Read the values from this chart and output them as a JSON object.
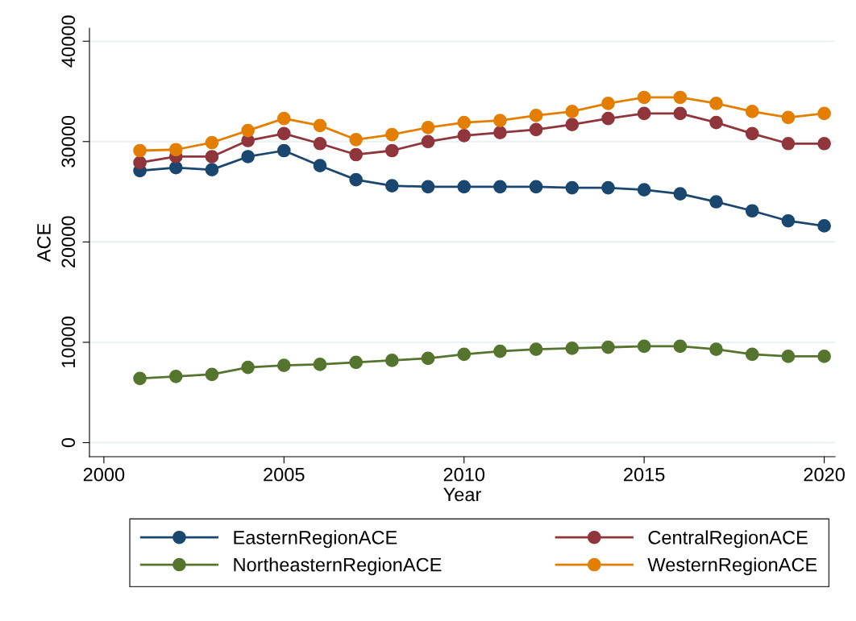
{
  "chart_data": {
    "type": "line",
    "xlabel": "Year",
    "ylabel": "ACE",
    "x": [
      2001,
      2002,
      2003,
      2004,
      2005,
      2006,
      2007,
      2008,
      2009,
      2010,
      2011,
      2012,
      2013,
      2014,
      2015,
      2016,
      2017,
      2018,
      2019,
      2020
    ],
    "series": [
      {
        "name": "EasternRegionACE",
        "color": "#1a476f",
        "values": [
          27100,
          27400,
          27200,
          28500,
          29100,
          27600,
          26200,
          25600,
          25500,
          25500,
          25500,
          25500,
          25400,
          25400,
          25200,
          24800,
          24000,
          23100,
          22100,
          21600
        ]
      },
      {
        "name": "CentralRegionACE",
        "color": "#90353b",
        "values": [
          27900,
          28500,
          28500,
          30100,
          30800,
          29800,
          28700,
          29100,
          30000,
          30600,
          30900,
          31200,
          31700,
          32300,
          32800,
          32800,
          31900,
          30800,
          29800,
          29800
        ]
      },
      {
        "name": "NortheasternRegionACE",
        "color": "#55752f",
        "values": [
          6400,
          6600,
          6800,
          7500,
          7700,
          7800,
          8000,
          8200,
          8400,
          8800,
          9100,
          9300,
          9400,
          9500,
          9600,
          9600,
          9300,
          8800,
          8600,
          8600
        ]
      },
      {
        "name": "WesternRegionACE",
        "color": "#e37e00",
        "values": [
          29100,
          29200,
          29900,
          31100,
          32300,
          31600,
          30200,
          30700,
          31400,
          31900,
          32100,
          32600,
          33000,
          33800,
          34400,
          34400,
          33800,
          33000,
          32400,
          32800
        ]
      }
    ],
    "xlim": [
      1999.6,
      2020.3
    ],
    "xticks": [
      2000,
      2005,
      2010,
      2015,
      2020
    ],
    "ylim": [
      -1400,
      41300
    ],
    "yticks": [
      0,
      10000,
      20000,
      30000,
      40000
    ],
    "grid": "y",
    "legend": "bottom",
    "marker": "circle",
    "line_style": "solid"
  }
}
